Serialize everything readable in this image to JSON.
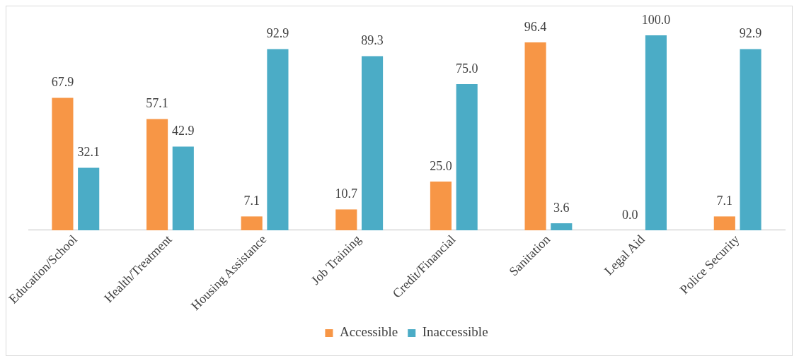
{
  "chart_data": {
    "type": "bar",
    "categories": [
      "Education/School",
      "Health/Treatment",
      "Housing Assistance",
      "Job Training",
      "Credit/Financial",
      "Sanitation",
      "Legal Aid",
      "Police Security"
    ],
    "series": [
      {
        "name": "Accessible",
        "color": "#f79646",
        "values": [
          67.9,
          57.1,
          7.1,
          10.7,
          25.0,
          96.4,
          0.0,
          7.1
        ],
        "value_labels": [
          "67.9",
          "57.1",
          "7.1",
          "10.7",
          "25.0",
          "96.4",
          "0.0",
          "7.1"
        ]
      },
      {
        "name": "Inaccessible",
        "color": "#4bacc6",
        "values": [
          32.1,
          42.9,
          92.9,
          89.3,
          75.0,
          3.6,
          100.0,
          92.9
        ],
        "value_labels": [
          "32.1",
          "42.9",
          "92.9",
          "89.3",
          "75.0",
          "3.6",
          "100.0",
          "92.9"
        ]
      }
    ],
    "legend": "bottom",
    "grid": false
  }
}
